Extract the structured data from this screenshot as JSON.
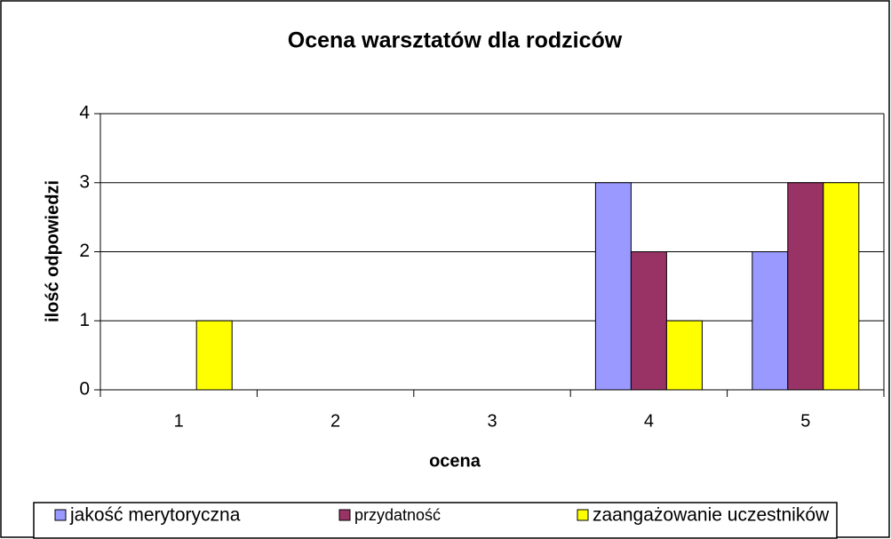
{
  "chart_data": {
    "type": "bar",
    "title": "Ocena warsztatów dla rodziców",
    "x_label": "ocena",
    "y_label": "ilość odpowiedzi",
    "categories": [
      "1",
      "2",
      "3",
      "4",
      "5"
    ],
    "series": [
      {
        "name": "jakość merytoryczna",
        "color": "#9999ff",
        "values": [
          0,
          0,
          0,
          3,
          2
        ]
      },
      {
        "name": "przydatność",
        "color": "#993366",
        "values": [
          0,
          0,
          0,
          2,
          3
        ]
      },
      {
        "name": "zaangażowanie uczestników",
        "color": "#ffff00",
        "values": [
          1,
          0,
          0,
          1,
          3
        ]
      }
    ],
    "ylim": [
      0,
      4
    ],
    "yticks": [
      0,
      1,
      2,
      3,
      4
    ],
    "grid": true,
    "legend": "bottom"
  }
}
